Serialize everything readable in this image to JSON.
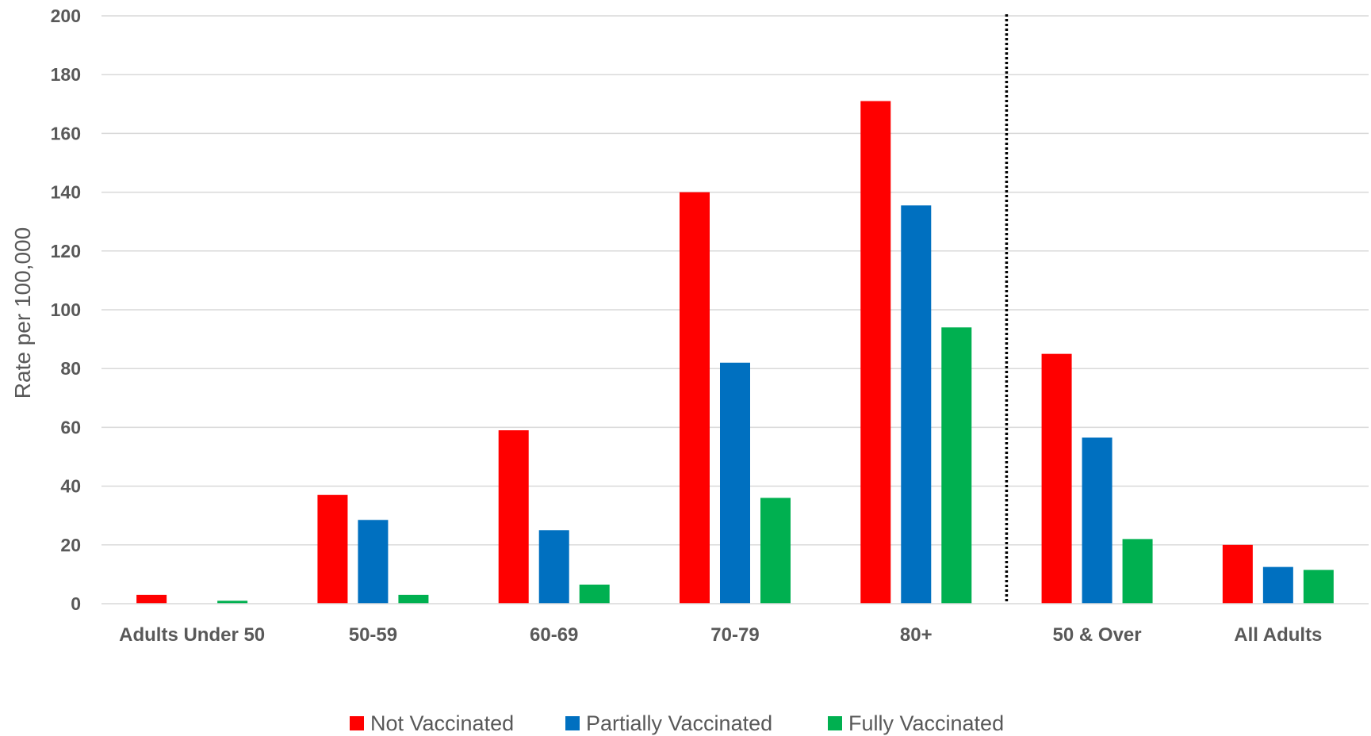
{
  "chart_data": {
    "type": "bar",
    "title": "",
    "xlabel": "",
    "ylabel": "Rate per 100,000",
    "ylim": [
      0,
      200
    ],
    "yticks": [
      0,
      20,
      40,
      60,
      80,
      100,
      120,
      140,
      160,
      180,
      200
    ],
    "grid": true,
    "legend_position": "bottom",
    "divider_after_category": "80+",
    "categories": [
      "Adults Under 50",
      "50-59",
      "60-69",
      "70-79",
      "80+",
      "50 & Over",
      "All Adults"
    ],
    "series": [
      {
        "name": "Not Vaccinated",
        "color": "#ff0000",
        "values": [
          3,
          37,
          59,
          140,
          171,
          85,
          20
        ]
      },
      {
        "name": "Partially Vaccinated",
        "color": "#0070c0",
        "values": [
          0,
          28.5,
          25,
          82,
          135.5,
          56.5,
          12.5
        ]
      },
      {
        "name": "Fully Vaccinated",
        "color": "#00b050",
        "values": [
          1,
          3,
          6.5,
          36,
          94,
          22,
          11.5
        ]
      }
    ]
  }
}
